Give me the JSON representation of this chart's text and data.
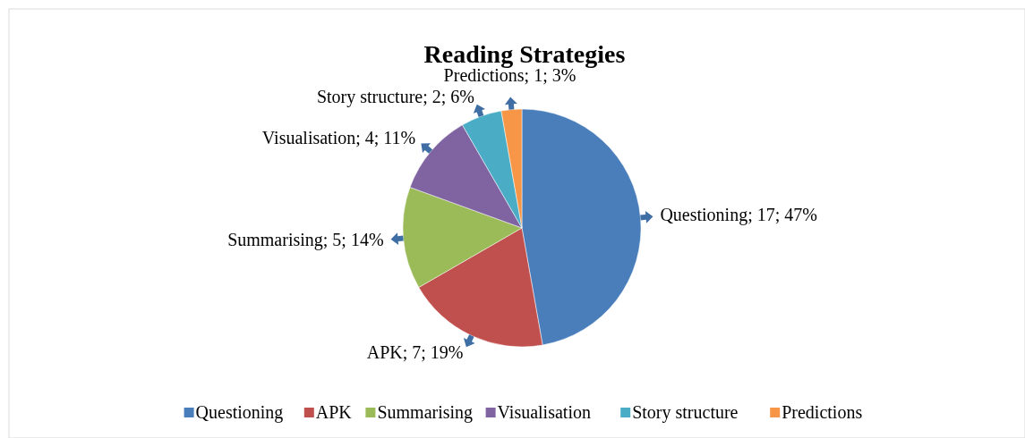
{
  "chart_data": {
    "type": "pie",
    "title": "Reading Strategies",
    "categories": [
      "Questioning",
      "APK",
      "Summarising",
      "Visualisation",
      "Story structure",
      "Predictions"
    ],
    "values": [
      17,
      7,
      5,
      4,
      2,
      1
    ],
    "colors": [
      "#4a7ebb",
      "#c0504d",
      "#9bbb59",
      "#8064a2",
      "#4bacc6",
      "#f79646"
    ],
    "value_labels": [
      "Questioning; 17; 47%",
      "APK; 7; 19%",
      "Summarising; 5; 14%",
      "Visualisation; 4; 11%",
      "Story structure; 2; 6%",
      "Predictions; 1; 3%"
    ],
    "legend": "bottom"
  }
}
